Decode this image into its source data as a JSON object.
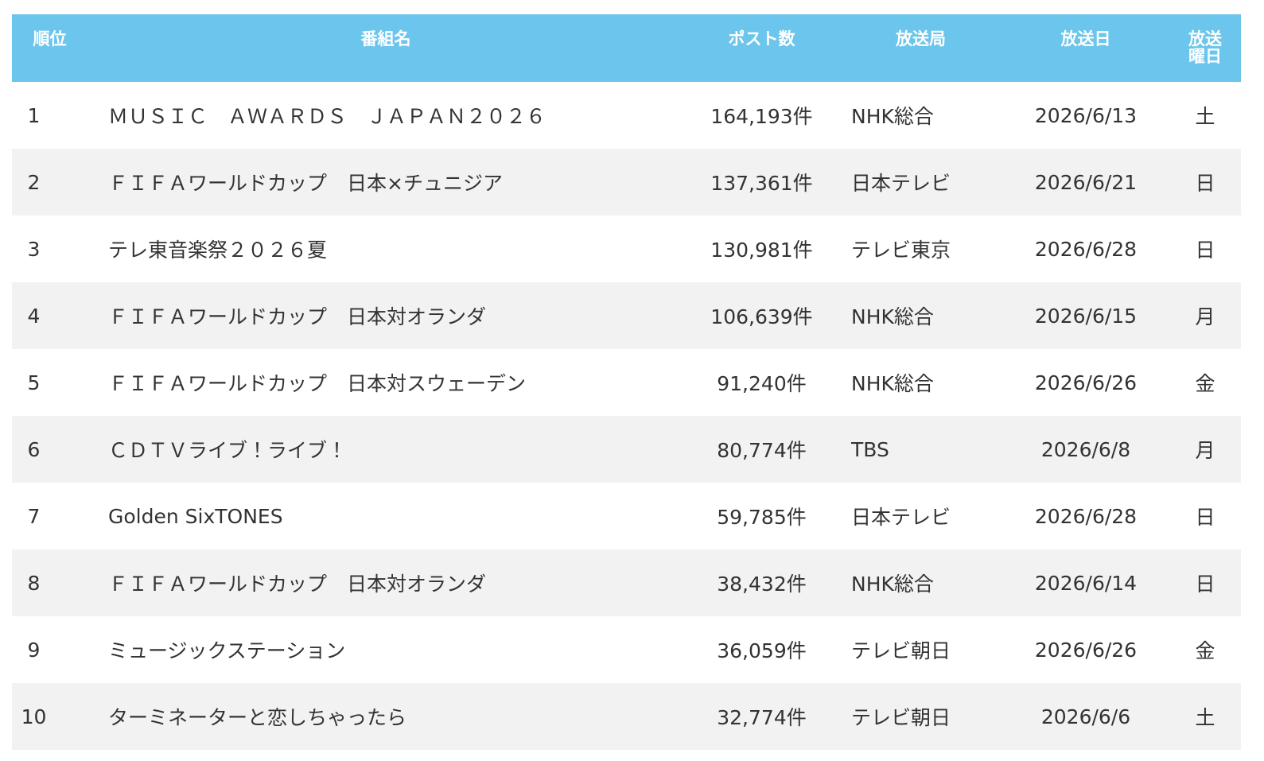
{
  "table": {
    "header": [
      "順位",
      "番組名",
      "ポスト数",
      "放送局",
      "放送日",
      "放送曜日"
    ],
    "rows": [
      [
        "1",
        "ＭＵＳＩＣ　ＡＷＡＲＤＳ　ＪＡＰＡＮ２０２６",
        "164,193件",
        "NHK総合",
        "2026/6/13",
        "土"
      ],
      [
        "2",
        "ＦＩＦＡワールドカップ　日本×チュニジア",
        "137,361件",
        "日本テレビ",
        "2026/6/21",
        "日"
      ],
      [
        "3",
        "テレ東音楽祭２０２６夏",
        "130,981件",
        "テレビ東京",
        "2026/6/28",
        "日"
      ],
      [
        "4",
        "ＦＩＦＡワールドカップ　日本対オランダ",
        "106,639件",
        "NHK総合",
        "2026/6/15",
        "月"
      ],
      [
        "5",
        "ＦＩＦＡワールドカップ　日本対スウェーデン",
        "91,240件",
        "NHK総合",
        "2026/6/26",
        "金"
      ],
      [
        "6",
        "ＣＤＴＶライブ！ライブ！",
        "80,774件",
        "TBS",
        "2026/6/8",
        "月"
      ],
      [
        "7",
        "Golden SixTONES",
        "59,785件",
        "日本テレビ",
        "2026/6/28",
        "日"
      ],
      [
        "8",
        "ＦＩＦＡワールドカップ　日本対オランダ",
        "38,432件",
        "NHK総合",
        "2026/6/14",
        "日"
      ],
      [
        "9",
        "ミュージックステーション",
        "36,059件",
        "テレビ朝日",
        "2026/6/26",
        "金"
      ],
      [
        "10",
        "ターミネーターと恋しちゃったら",
        "32,774件",
        "テレビ朝日",
        "2026/6/6",
        "土"
      ]
    ]
  }
}
